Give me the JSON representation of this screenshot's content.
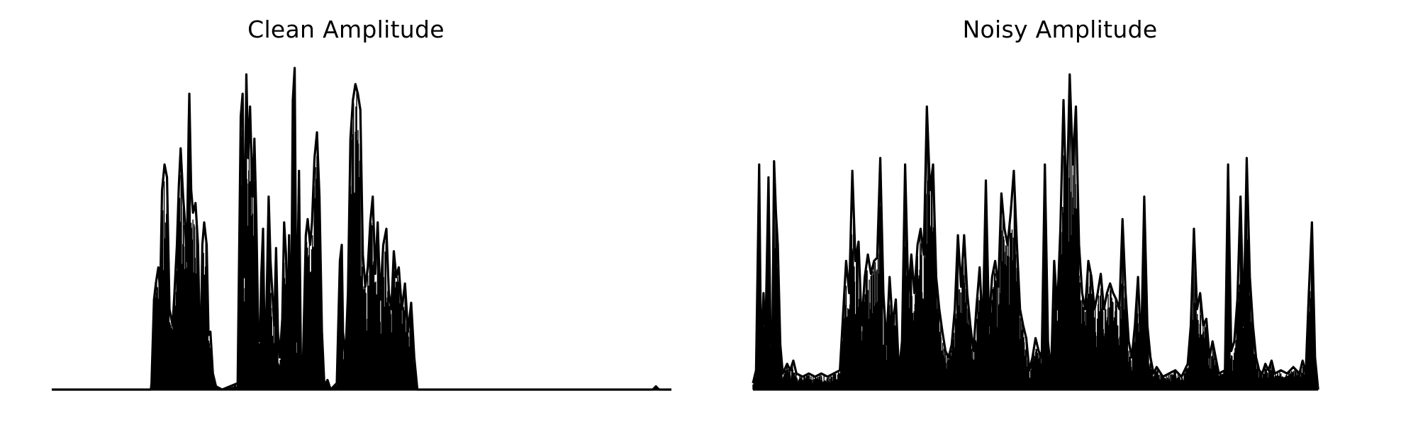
{
  "chart_data": [
    {
      "type": "area",
      "title": "Clean Amplitude",
      "xlabel": "",
      "ylabel": "",
      "axes_visible": false,
      "grid": false,
      "ylim": [
        0,
        1
      ],
      "color": "#000000",
      "envelope": [
        [
          0.0,
          0.0
        ],
        [
          0.16,
          0.0
        ],
        [
          0.161,
          0.02
        ],
        [
          0.165,
          0.28
        ],
        [
          0.168,
          0.33
        ],
        [
          0.172,
          0.38
        ],
        [
          0.175,
          0.3
        ],
        [
          0.178,
          0.62
        ],
        [
          0.182,
          0.7
        ],
        [
          0.186,
          0.66
        ],
        [
          0.19,
          0.25
        ],
        [
          0.195,
          0.2
        ],
        [
          0.198,
          0.3
        ],
        [
          0.202,
          0.45
        ],
        [
          0.205,
          0.63
        ],
        [
          0.208,
          0.75
        ],
        [
          0.212,
          0.6
        ],
        [
          0.215,
          0.52
        ],
        [
          0.218,
          0.4
        ],
        [
          0.221,
          0.82
        ],
        [
          0.222,
          0.92
        ],
        [
          0.225,
          0.62
        ],
        [
          0.228,
          0.55
        ],
        [
          0.232,
          0.58
        ],
        [
          0.236,
          0.45
        ],
        [
          0.24,
          0.05
        ],
        [
          0.243,
          0.45
        ],
        [
          0.246,
          0.52
        ],
        [
          0.25,
          0.45
        ],
        [
          0.253,
          0.17
        ],
        [
          0.256,
          0.18
        ],
        [
          0.26,
          0.05
        ],
        [
          0.265,
          0.01
        ],
        [
          0.275,
          0.0
        ],
        [
          0.3,
          0.02
        ],
        [
          0.305,
          0.85
        ],
        [
          0.308,
          0.92
        ],
        [
          0.311,
          0.35
        ],
        [
          0.314,
          0.98
        ],
        [
          0.317,
          0.72
        ],
        [
          0.32,
          0.88
        ],
        [
          0.324,
          0.6
        ],
        [
          0.327,
          0.78
        ],
        [
          0.33,
          0.55
        ],
        [
          0.333,
          0.2
        ],
        [
          0.336,
          0.15
        ],
        [
          0.338,
          0.35
        ],
        [
          0.341,
          0.5
        ],
        [
          0.344,
          0.05
        ],
        [
          0.347,
          0.3
        ],
        [
          0.35,
          0.6
        ],
        [
          0.353,
          0.4
        ],
        [
          0.356,
          0.3
        ],
        [
          0.359,
          0.2
        ],
        [
          0.362,
          0.44
        ],
        [
          0.365,
          0.18
        ],
        [
          0.368,
          0.1
        ],
        [
          0.372,
          0.22
        ],
        [
          0.375,
          0.52
        ],
        [
          0.378,
          0.42
        ],
        [
          0.381,
          0.18
        ],
        [
          0.383,
          0.48
        ],
        [
          0.386,
          0.1
        ],
        [
          0.389,
          0.9
        ],
        [
          0.392,
          1.0
        ],
        [
          0.395,
          0.15
        ],
        [
          0.399,
          0.68
        ],
        [
          0.402,
          0.1
        ],
        [
          0.405,
          0.05
        ],
        [
          0.41,
          0.48
        ],
        [
          0.413,
          0.53
        ],
        [
          0.417,
          0.45
        ],
        [
          0.42,
          0.52
        ],
        [
          0.424,
          0.72
        ],
        [
          0.428,
          0.8
        ],
        [
          0.432,
          0.6
        ],
        [
          0.436,
          0.18
        ],
        [
          0.44,
          0.01
        ],
        [
          0.445,
          0.03
        ],
        [
          0.45,
          0.0
        ],
        [
          0.46,
          0.02
        ],
        [
          0.465,
          0.4
        ],
        [
          0.468,
          0.45
        ],
        [
          0.47,
          0.18
        ],
        [
          0.474,
          0.1
        ],
        [
          0.478,
          0.3
        ],
        [
          0.482,
          0.78
        ],
        [
          0.486,
          0.9
        ],
        [
          0.49,
          0.95
        ],
        [
          0.494,
          0.92
        ],
        [
          0.498,
          0.87
        ],
        [
          0.502,
          0.42
        ],
        [
          0.506,
          0.32
        ],
        [
          0.51,
          0.38
        ],
        [
          0.514,
          0.52
        ],
        [
          0.518,
          0.6
        ],
        [
          0.522,
          0.36
        ],
        [
          0.526,
          0.52
        ],
        [
          0.53,
          0.28
        ],
        [
          0.535,
          0.45
        ],
        [
          0.54,
          0.5
        ],
        [
          0.544,
          0.3
        ],
        [
          0.548,
          0.25
        ],
        [
          0.552,
          0.43
        ],
        [
          0.556,
          0.35
        ],
        [
          0.56,
          0.38
        ],
        [
          0.565,
          0.25
        ],
        [
          0.57,
          0.33
        ],
        [
          0.575,
          0.18
        ],
        [
          0.58,
          0.27
        ],
        [
          0.585,
          0.1
        ],
        [
          0.59,
          0.0
        ],
        [
          0.97,
          0.0
        ],
        [
          0.975,
          0.01
        ],
        [
          0.98,
          0.0
        ],
        [
          1.0,
          0.0
        ]
      ]
    },
    {
      "type": "area",
      "title": "Noisy Amplitude",
      "xlabel": "",
      "ylabel": "",
      "axes_visible": false,
      "grid": false,
      "ylim": [
        0,
        1
      ],
      "color": "#000000",
      "envelope": [
        [
          0.0,
          0.02
        ],
        [
          0.005,
          0.06
        ],
        [
          0.01,
          0.7
        ],
        [
          0.013,
          0.1
        ],
        [
          0.017,
          0.3
        ],
        [
          0.02,
          0.15
        ],
        [
          0.025,
          0.66
        ],
        [
          0.028,
          0.2
        ],
        [
          0.031,
          0.1
        ],
        [
          0.034,
          0.71
        ],
        [
          0.037,
          0.55
        ],
        [
          0.04,
          0.45
        ],
        [
          0.044,
          0.14
        ],
        [
          0.048,
          0.05
        ],
        [
          0.055,
          0.08
        ],
        [
          0.06,
          0.06
        ],
        [
          0.065,
          0.09
        ],
        [
          0.07,
          0.05
        ],
        [
          0.08,
          0.04
        ],
        [
          0.09,
          0.05
        ],
        [
          0.1,
          0.04
        ],
        [
          0.11,
          0.05
        ],
        [
          0.12,
          0.04
        ],
        [
          0.13,
          0.05
        ],
        [
          0.14,
          0.06
        ],
        [
          0.15,
          0.4
        ],
        [
          0.155,
          0.3
        ],
        [
          0.16,
          0.68
        ],
        [
          0.165,
          0.4
        ],
        [
          0.17,
          0.46
        ],
        [
          0.175,
          0.2
        ],
        [
          0.18,
          0.35
        ],
        [
          0.185,
          0.42
        ],
        [
          0.19,
          0.36
        ],
        [
          0.195,
          0.4
        ],
        [
          0.2,
          0.41
        ],
        [
          0.205,
          0.72
        ],
        [
          0.21,
          0.3
        ],
        [
          0.215,
          0.14
        ],
        [
          0.22,
          0.35
        ],
        [
          0.225,
          0.2
        ],
        [
          0.23,
          0.28
        ],
        [
          0.235,
          0.05
        ],
        [
          0.24,
          0.15
        ],
        [
          0.245,
          0.7
        ],
        [
          0.25,
          0.3
        ],
        [
          0.255,
          0.42
        ],
        [
          0.26,
          0.3
        ],
        [
          0.265,
          0.45
        ],
        [
          0.27,
          0.5
        ],
        [
          0.275,
          0.42
        ],
        [
          0.28,
          0.88
        ],
        [
          0.285,
          0.62
        ],
        [
          0.29,
          0.7
        ],
        [
          0.295,
          0.35
        ],
        [
          0.3,
          0.25
        ],
        [
          0.305,
          0.18
        ],
        [
          0.31,
          0.12
        ],
        [
          0.315,
          0.1
        ],
        [
          0.32,
          0.14
        ],
        [
          0.325,
          0.25
        ],
        [
          0.33,
          0.48
        ],
        [
          0.335,
          0.32
        ],
        [
          0.34,
          0.48
        ],
        [
          0.345,
          0.3
        ],
        [
          0.35,
          0.2
        ],
        [
          0.355,
          0.12
        ],
        [
          0.36,
          0.26
        ],
        [
          0.365,
          0.38
        ],
        [
          0.37,
          0.18
        ],
        [
          0.375,
          0.65
        ],
        [
          0.38,
          0.2
        ],
        [
          0.385,
          0.35
        ],
        [
          0.39,
          0.4
        ],
        [
          0.395,
          0.32
        ],
        [
          0.4,
          0.61
        ],
        [
          0.405,
          0.5
        ],
        [
          0.41,
          0.45
        ],
        [
          0.415,
          0.55
        ],
        [
          0.42,
          0.68
        ],
        [
          0.425,
          0.45
        ],
        [
          0.43,
          0.25
        ],
        [
          0.435,
          0.2
        ],
        [
          0.44,
          0.16
        ],
        [
          0.445,
          0.06
        ],
        [
          0.45,
          0.1
        ],
        [
          0.455,
          0.16
        ],
        [
          0.46,
          0.12
        ],
        [
          0.465,
          0.1
        ],
        [
          0.47,
          0.7
        ],
        [
          0.475,
          0.15
        ],
        [
          0.48,
          0.05
        ],
        [
          0.485,
          0.4
        ],
        [
          0.49,
          0.25
        ],
        [
          0.495,
          0.5
        ],
        [
          0.5,
          0.9
        ],
        [
          0.505,
          0.55
        ],
        [
          0.51,
          0.98
        ],
        [
          0.515,
          0.7
        ],
        [
          0.52,
          0.88
        ],
        [
          0.525,
          0.45
        ],
        [
          0.53,
          0.3
        ],
        [
          0.535,
          0.25
        ],
        [
          0.54,
          0.4
        ],
        [
          0.545,
          0.35
        ],
        [
          0.55,
          0.25
        ],
        [
          0.555,
          0.3
        ],
        [
          0.56,
          0.36
        ],
        [
          0.565,
          0.25
        ],
        [
          0.57,
          0.3
        ],
        [
          0.575,
          0.33
        ],
        [
          0.58,
          0.3
        ],
        [
          0.585,
          0.28
        ],
        [
          0.59,
          0.25
        ],
        [
          0.595,
          0.53
        ],
        [
          0.6,
          0.3
        ],
        [
          0.605,
          0.15
        ],
        [
          0.61,
          0.1
        ],
        [
          0.615,
          0.2
        ],
        [
          0.62,
          0.35
        ],
        [
          0.625,
          0.12
        ],
        [
          0.63,
          0.6
        ],
        [
          0.635,
          0.2
        ],
        [
          0.64,
          0.1
        ],
        [
          0.645,
          0.05
        ],
        [
          0.65,
          0.07
        ],
        [
          0.66,
          0.04
        ],
        [
          0.67,
          0.05
        ],
        [
          0.68,
          0.06
        ],
        [
          0.69,
          0.04
        ],
        [
          0.7,
          0.08
        ],
        [
          0.705,
          0.2
        ],
        [
          0.71,
          0.5
        ],
        [
          0.715,
          0.25
        ],
        [
          0.72,
          0.3
        ],
        [
          0.725,
          0.2
        ],
        [
          0.73,
          0.22
        ],
        [
          0.735,
          0.1
        ],
        [
          0.74,
          0.15
        ],
        [
          0.745,
          0.1
        ],
        [
          0.75,
          0.05
        ],
        [
          0.76,
          0.06
        ],
        [
          0.765,
          0.7
        ],
        [
          0.77,
          0.12
        ],
        [
          0.775,
          0.15
        ],
        [
          0.78,
          0.28
        ],
        [
          0.785,
          0.6
        ],
        [
          0.79,
          0.2
        ],
        [
          0.795,
          0.72
        ],
        [
          0.8,
          0.35
        ],
        [
          0.805,
          0.2
        ],
        [
          0.81,
          0.1
        ],
        [
          0.815,
          0.06
        ],
        [
          0.82,
          0.05
        ],
        [
          0.825,
          0.08
        ],
        [
          0.83,
          0.06
        ],
        [
          0.835,
          0.09
        ],
        [
          0.84,
          0.05
        ],
        [
          0.85,
          0.06
        ],
        [
          0.86,
          0.05
        ],
        [
          0.87,
          0.07
        ],
        [
          0.88,
          0.05
        ],
        [
          0.885,
          0.09
        ],
        [
          0.89,
          0.05
        ],
        [
          0.895,
          0.3
        ],
        [
          0.9,
          0.52
        ],
        [
          0.905,
          0.1
        ],
        [
          0.91,
          0.0
        ]
      ]
    }
  ]
}
